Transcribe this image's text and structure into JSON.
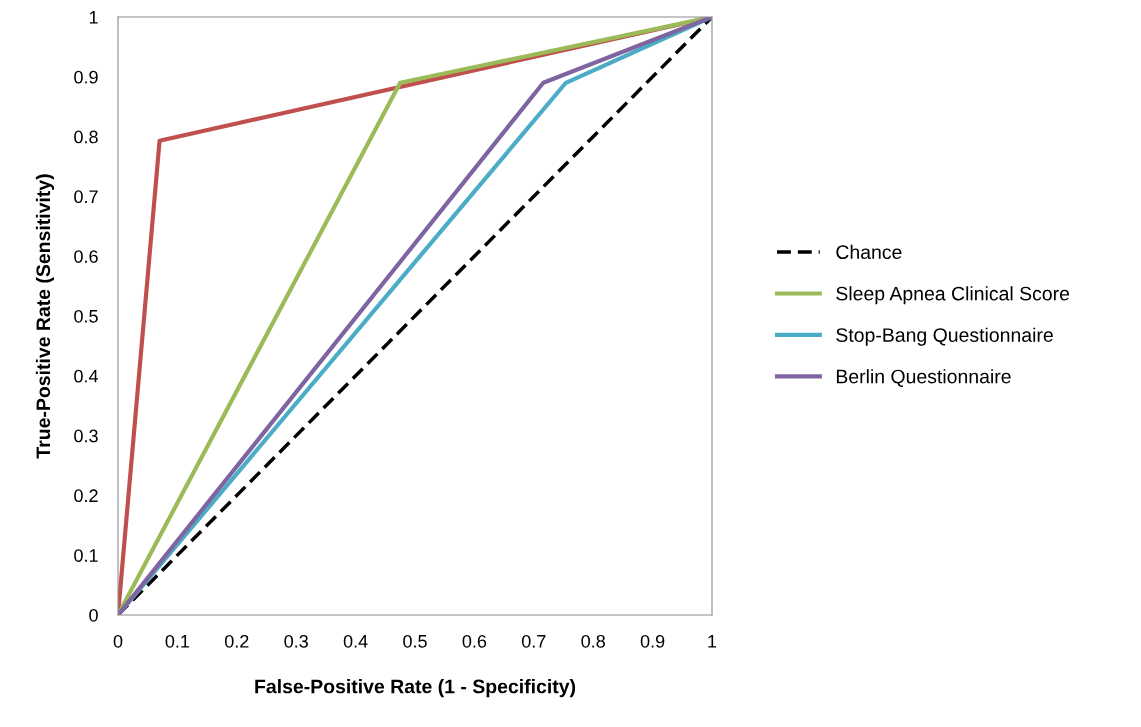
{
  "chart_data": {
    "type": "line",
    "xlabel": "False-Positive Rate (1 - Specificity)",
    "ylabel": "True-Positive Rate (Sensitivity)",
    "xlim": [
      0,
      1
    ],
    "ylim": [
      0,
      1
    ],
    "xticks": [
      0,
      0.1,
      0.2,
      0.3,
      0.4,
      0.5,
      0.6,
      0.7,
      0.8,
      0.9,
      1
    ],
    "yticks": [
      0,
      0.1,
      0.2,
      0.3,
      0.4,
      0.5,
      0.6,
      0.7,
      0.8,
      0.9,
      1
    ],
    "grid": false,
    "legend": "right",
    "marker": "none",
    "series": [
      {
        "name": "Chance",
        "color": "#000000",
        "line_style": "dashed",
        "x": [
          0,
          1
        ],
        "values": [
          0,
          1
        ]
      },
      {
        "color": "#c0504d",
        "line_style": "solid",
        "x": [
          0,
          0.07,
          1
        ],
        "values": [
          0,
          0.793,
          1
        ]
      },
      {
        "name": "Sleep Apnea Clinical Score",
        "color": "#9bbb59",
        "line_style": "solid",
        "x": [
          0,
          0.475,
          1
        ],
        "values": [
          0,
          0.89,
          1
        ]
      },
      {
        "name": "Stop-Bang Questionnaire",
        "color": "#4bacc6",
        "line_style": "solid",
        "x": [
          0,
          0.754,
          1
        ],
        "values": [
          0,
          0.89,
          1
        ]
      },
      {
        "name": "Berlin Questionnaire",
        "color": "#8064a2",
        "line_style": "solid",
        "x": [
          0,
          0.716,
          1
        ],
        "values": [
          0,
          0.89,
          1
        ]
      }
    ]
  }
}
